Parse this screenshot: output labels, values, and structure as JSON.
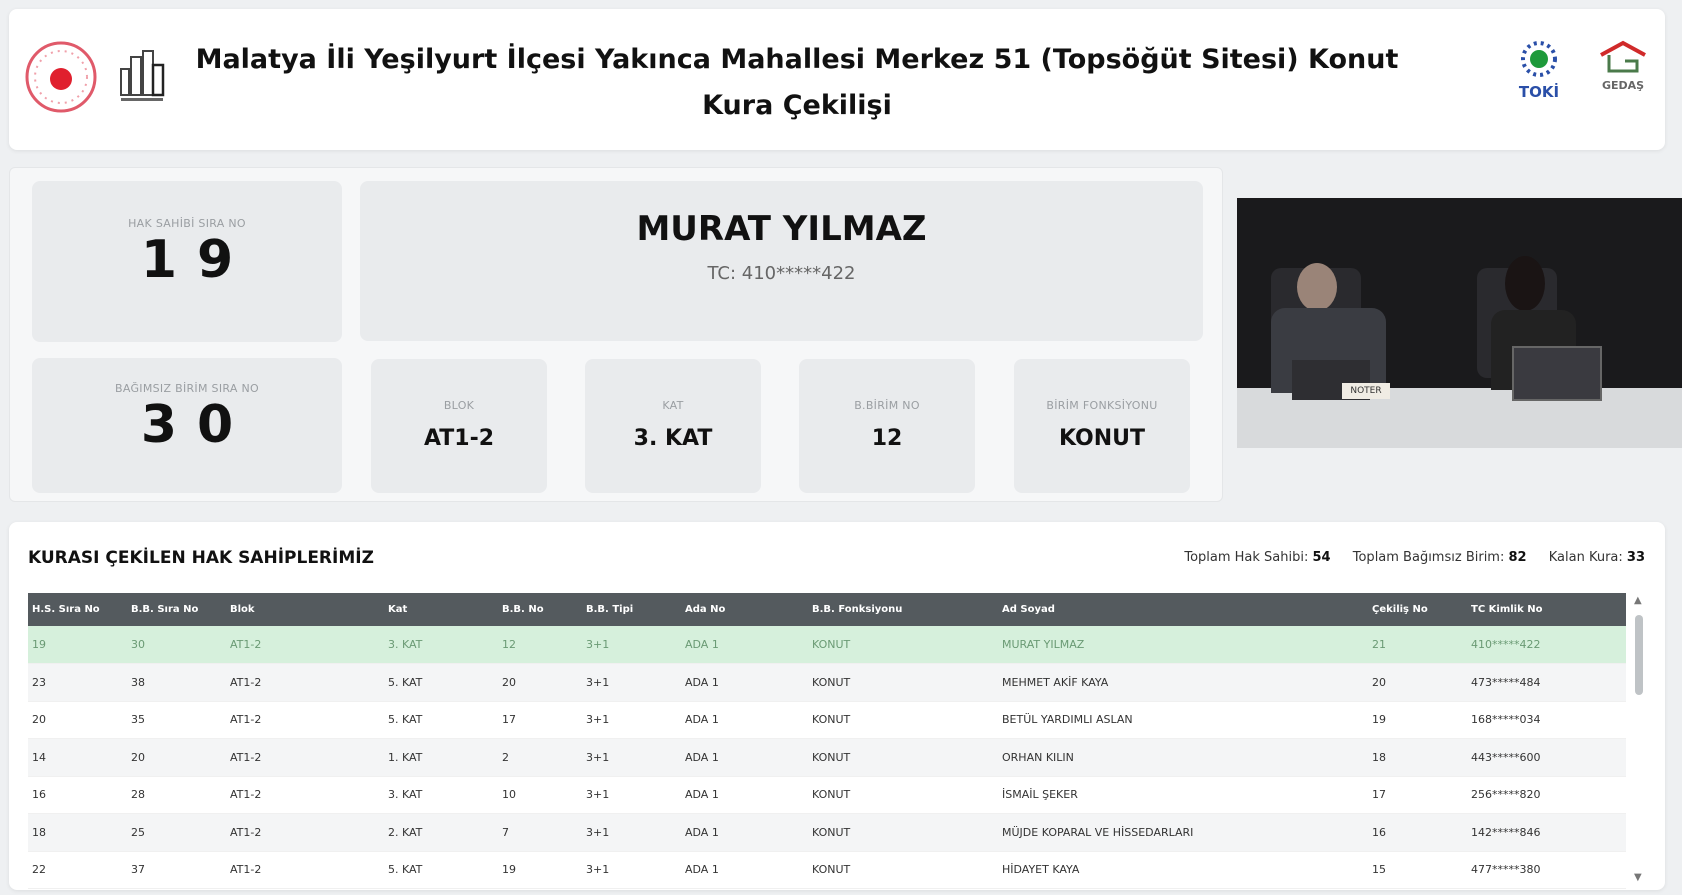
{
  "header": {
    "title": "Malatya İli Yeşilyurt İlçesi Yakınca Mahallesi Merkez 51 (Topsöğüt Sitesi) Konut Kura Çekilişi",
    "logos": {
      "toki": "TOKİ",
      "gedas": "GEDAŞ"
    }
  },
  "current": {
    "hak_sahibi_label": "HAK SAHİBİ SIRA NO",
    "hak_sahibi_digits": [
      "1",
      "9"
    ],
    "name": "MURAT YILMAZ",
    "tc": "TC: 410*****422",
    "bb_sira_label": "BAĞIMSIZ BİRİM SIRA NO",
    "bb_sira_digits": [
      "3",
      "0"
    ],
    "blok_label": "BLOK",
    "blok": "AT1-2",
    "kat_label": "KAT",
    "kat": "3. KAT",
    "bbno_label": "B.BİRİM NO",
    "bbno": "12",
    "fonk_label": "BİRİM FONKSİYONU",
    "fonk": "KONUT"
  },
  "video": {
    "sign": "NOTER"
  },
  "table": {
    "title": "KURASI ÇEKİLEN HAK SAHİPLERİMİZ",
    "stats": {
      "hak_label": "Toplam Hak Sahibi:",
      "hak": "54",
      "bb_label": "Toplam Bağımsız Birim:",
      "bb": "82",
      "kalan_label": "Kalan Kura:",
      "kalan": "33"
    },
    "columns": [
      "H.S. Sıra No",
      "B.B. Sıra No",
      "Blok",
      "Kat",
      "B.B. No",
      "B.B. Tipi",
      "Ada No",
      "B.B. Fonksiyonu",
      "Ad Soyad",
      "Çekiliş No",
      "TC Kimlik No"
    ],
    "rows": [
      [
        "19",
        "30",
        "AT1-2",
        "3. KAT",
        "12",
        "3+1",
        "ADA 1",
        "KONUT",
        "MURAT YILMAZ",
        "21",
        "410*****422"
      ],
      [
        "23",
        "38",
        "AT1-2",
        "5. KAT",
        "20",
        "3+1",
        "ADA 1",
        "KONUT",
        "MEHMET AKİF KAYA",
        "20",
        "473*****484"
      ],
      [
        "20",
        "35",
        "AT1-2",
        "5. KAT",
        "17",
        "3+1",
        "ADA 1",
        "KONUT",
        "BETÜL YARDIMLI ASLAN",
        "19",
        "168*****034"
      ],
      [
        "14",
        "20",
        "AT1-2",
        "1. KAT",
        "2",
        "3+1",
        "ADA 1",
        "KONUT",
        "ORHAN KILIN",
        "18",
        "443*****600"
      ],
      [
        "16",
        "28",
        "AT1-2",
        "3. KAT",
        "10",
        "3+1",
        "ADA 1",
        "KONUT",
        "İSMAİL ŞEKER",
        "17",
        "256*****820"
      ],
      [
        "18",
        "25",
        "AT1-2",
        "2. KAT",
        "7",
        "3+1",
        "ADA 1",
        "KONUT",
        "MÜJDE KOPARAL VE HİSSEDARLARI",
        "16",
        "142*****846"
      ],
      [
        "22",
        "37",
        "AT1-2",
        "5. KAT",
        "19",
        "3+1",
        "ADA 1",
        "KONUT",
        "HİDAYET KAYA",
        "15",
        "477*****380"
      ]
    ],
    "highlight_color": "#d6f0dc"
  }
}
